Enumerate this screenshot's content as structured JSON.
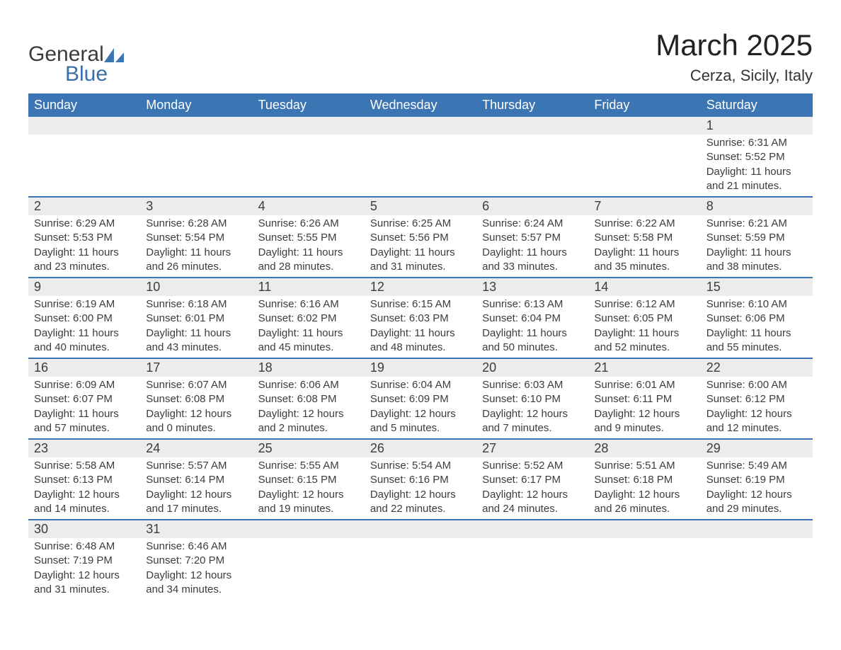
{
  "brand": {
    "general": "General",
    "blue": "Blue",
    "shape_color": "#3b75b3"
  },
  "title": "March 2025",
  "location": "Cerza, Sicily, Italy",
  "colors": {
    "header_bg": "#3b75b3",
    "header_text": "#ffffff",
    "daynum_bg": "#ececec",
    "body_text": "#3c3c3c",
    "row_divider": "#3b75b3"
  },
  "typography": {
    "title_fontsize": 42,
    "location_fontsize": 22,
    "dayhead_fontsize": 18,
    "daynum_fontsize": 18,
    "detail_fontsize": 15
  },
  "day_headers": [
    "Sunday",
    "Monday",
    "Tuesday",
    "Wednesday",
    "Thursday",
    "Friday",
    "Saturday"
  ],
  "weeks": [
    [
      {
        "n": "",
        "sunrise": "",
        "sunset": "",
        "daylight": ""
      },
      {
        "n": "",
        "sunrise": "",
        "sunset": "",
        "daylight": ""
      },
      {
        "n": "",
        "sunrise": "",
        "sunset": "",
        "daylight": ""
      },
      {
        "n": "",
        "sunrise": "",
        "sunset": "",
        "daylight": ""
      },
      {
        "n": "",
        "sunrise": "",
        "sunset": "",
        "daylight": ""
      },
      {
        "n": "",
        "sunrise": "",
        "sunset": "",
        "daylight": ""
      },
      {
        "n": "1",
        "sunrise": "Sunrise: 6:31 AM",
        "sunset": "Sunset: 5:52 PM",
        "daylight": "Daylight: 11 hours and 21 minutes."
      }
    ],
    [
      {
        "n": "2",
        "sunrise": "Sunrise: 6:29 AM",
        "sunset": "Sunset: 5:53 PM",
        "daylight": "Daylight: 11 hours and 23 minutes."
      },
      {
        "n": "3",
        "sunrise": "Sunrise: 6:28 AM",
        "sunset": "Sunset: 5:54 PM",
        "daylight": "Daylight: 11 hours and 26 minutes."
      },
      {
        "n": "4",
        "sunrise": "Sunrise: 6:26 AM",
        "sunset": "Sunset: 5:55 PM",
        "daylight": "Daylight: 11 hours and 28 minutes."
      },
      {
        "n": "5",
        "sunrise": "Sunrise: 6:25 AM",
        "sunset": "Sunset: 5:56 PM",
        "daylight": "Daylight: 11 hours and 31 minutes."
      },
      {
        "n": "6",
        "sunrise": "Sunrise: 6:24 AM",
        "sunset": "Sunset: 5:57 PM",
        "daylight": "Daylight: 11 hours and 33 minutes."
      },
      {
        "n": "7",
        "sunrise": "Sunrise: 6:22 AM",
        "sunset": "Sunset: 5:58 PM",
        "daylight": "Daylight: 11 hours and 35 minutes."
      },
      {
        "n": "8",
        "sunrise": "Sunrise: 6:21 AM",
        "sunset": "Sunset: 5:59 PM",
        "daylight": "Daylight: 11 hours and 38 minutes."
      }
    ],
    [
      {
        "n": "9",
        "sunrise": "Sunrise: 6:19 AM",
        "sunset": "Sunset: 6:00 PM",
        "daylight": "Daylight: 11 hours and 40 minutes."
      },
      {
        "n": "10",
        "sunrise": "Sunrise: 6:18 AM",
        "sunset": "Sunset: 6:01 PM",
        "daylight": "Daylight: 11 hours and 43 minutes."
      },
      {
        "n": "11",
        "sunrise": "Sunrise: 6:16 AM",
        "sunset": "Sunset: 6:02 PM",
        "daylight": "Daylight: 11 hours and 45 minutes."
      },
      {
        "n": "12",
        "sunrise": "Sunrise: 6:15 AM",
        "sunset": "Sunset: 6:03 PM",
        "daylight": "Daylight: 11 hours and 48 minutes."
      },
      {
        "n": "13",
        "sunrise": "Sunrise: 6:13 AM",
        "sunset": "Sunset: 6:04 PM",
        "daylight": "Daylight: 11 hours and 50 minutes."
      },
      {
        "n": "14",
        "sunrise": "Sunrise: 6:12 AM",
        "sunset": "Sunset: 6:05 PM",
        "daylight": "Daylight: 11 hours and 52 minutes."
      },
      {
        "n": "15",
        "sunrise": "Sunrise: 6:10 AM",
        "sunset": "Sunset: 6:06 PM",
        "daylight": "Daylight: 11 hours and 55 minutes."
      }
    ],
    [
      {
        "n": "16",
        "sunrise": "Sunrise: 6:09 AM",
        "sunset": "Sunset: 6:07 PM",
        "daylight": "Daylight: 11 hours and 57 minutes."
      },
      {
        "n": "17",
        "sunrise": "Sunrise: 6:07 AM",
        "sunset": "Sunset: 6:08 PM",
        "daylight": "Daylight: 12 hours and 0 minutes."
      },
      {
        "n": "18",
        "sunrise": "Sunrise: 6:06 AM",
        "sunset": "Sunset: 6:08 PM",
        "daylight": "Daylight: 12 hours and 2 minutes."
      },
      {
        "n": "19",
        "sunrise": "Sunrise: 6:04 AM",
        "sunset": "Sunset: 6:09 PM",
        "daylight": "Daylight: 12 hours and 5 minutes."
      },
      {
        "n": "20",
        "sunrise": "Sunrise: 6:03 AM",
        "sunset": "Sunset: 6:10 PM",
        "daylight": "Daylight: 12 hours and 7 minutes."
      },
      {
        "n": "21",
        "sunrise": "Sunrise: 6:01 AM",
        "sunset": "Sunset: 6:11 PM",
        "daylight": "Daylight: 12 hours and 9 minutes."
      },
      {
        "n": "22",
        "sunrise": "Sunrise: 6:00 AM",
        "sunset": "Sunset: 6:12 PM",
        "daylight": "Daylight: 12 hours and 12 minutes."
      }
    ],
    [
      {
        "n": "23",
        "sunrise": "Sunrise: 5:58 AM",
        "sunset": "Sunset: 6:13 PM",
        "daylight": "Daylight: 12 hours and 14 minutes."
      },
      {
        "n": "24",
        "sunrise": "Sunrise: 5:57 AM",
        "sunset": "Sunset: 6:14 PM",
        "daylight": "Daylight: 12 hours and 17 minutes."
      },
      {
        "n": "25",
        "sunrise": "Sunrise: 5:55 AM",
        "sunset": "Sunset: 6:15 PM",
        "daylight": "Daylight: 12 hours and 19 minutes."
      },
      {
        "n": "26",
        "sunrise": "Sunrise: 5:54 AM",
        "sunset": "Sunset: 6:16 PM",
        "daylight": "Daylight: 12 hours and 22 minutes."
      },
      {
        "n": "27",
        "sunrise": "Sunrise: 5:52 AM",
        "sunset": "Sunset: 6:17 PM",
        "daylight": "Daylight: 12 hours and 24 minutes."
      },
      {
        "n": "28",
        "sunrise": "Sunrise: 5:51 AM",
        "sunset": "Sunset: 6:18 PM",
        "daylight": "Daylight: 12 hours and 26 minutes."
      },
      {
        "n": "29",
        "sunrise": "Sunrise: 5:49 AM",
        "sunset": "Sunset: 6:19 PM",
        "daylight": "Daylight: 12 hours and 29 minutes."
      }
    ],
    [
      {
        "n": "30",
        "sunrise": "Sunrise: 6:48 AM",
        "sunset": "Sunset: 7:19 PM",
        "daylight": "Daylight: 12 hours and 31 minutes."
      },
      {
        "n": "31",
        "sunrise": "Sunrise: 6:46 AM",
        "sunset": "Sunset: 7:20 PM",
        "daylight": "Daylight: 12 hours and 34 minutes."
      },
      {
        "n": "",
        "sunrise": "",
        "sunset": "",
        "daylight": ""
      },
      {
        "n": "",
        "sunrise": "",
        "sunset": "",
        "daylight": ""
      },
      {
        "n": "",
        "sunrise": "",
        "sunset": "",
        "daylight": ""
      },
      {
        "n": "",
        "sunrise": "",
        "sunset": "",
        "daylight": ""
      },
      {
        "n": "",
        "sunrise": "",
        "sunset": "",
        "daylight": ""
      }
    ]
  ]
}
